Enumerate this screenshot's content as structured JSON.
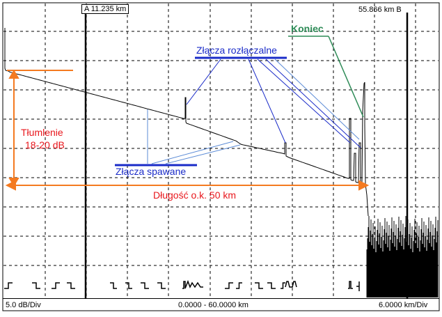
{
  "cursors": {
    "a_label": "A 11.235 km",
    "b_label": "55.866 km B"
  },
  "status": {
    "vertical_scale": "5.0 dB/Div",
    "range": "0.0000 - 60.0000 km",
    "horizontal_scale": "6.0000 km/Div"
  },
  "annotations": {
    "end": "Koniec",
    "connectors": "Złącza rozłączalne",
    "attenuation_line1": "Tłumlenie",
    "attenuation_line2": "18-20 dB",
    "splices": "Złącza spawane",
    "length": "Długość o.k. 50 km"
  },
  "colors": {
    "trace": "#000000",
    "grid": "#000000",
    "annotation_red": "#e8161c",
    "annotation_orange": "#f47a20",
    "annotation_blue": "#1a2bc8",
    "pointer_light_blue": "#5b8bd6",
    "annotation_green": "#2e8b57"
  }
}
